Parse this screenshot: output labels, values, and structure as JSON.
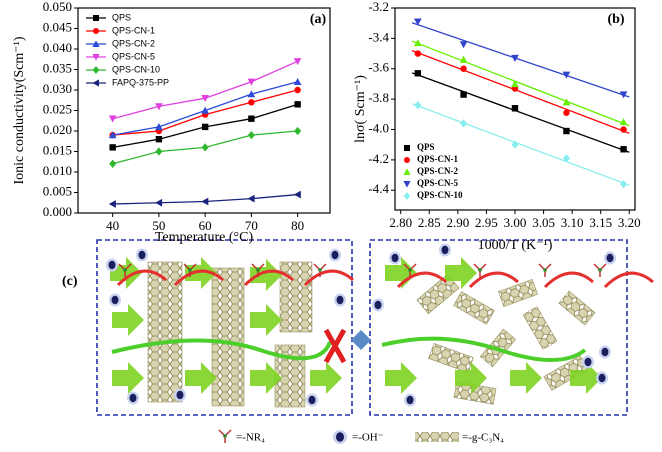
{
  "chart_data": [
    {
      "type": "line",
      "annotation": "(a)",
      "xlabel": "Temperature (°C)",
      "ylabel": "Ionic conductivity(Scm⁻¹)",
      "x": [
        40,
        50,
        60,
        70,
        80
      ],
      "xlim": [
        32.5,
        87
      ],
      "xticks": [
        40,
        50,
        60,
        70,
        80
      ],
      "ylim": [
        0,
        0.05
      ],
      "yticks": [
        {
          "value": 0,
          "label": "0.000"
        },
        {
          "value": 0.005,
          "label": "0.005"
        },
        {
          "value": 0.01,
          "label": "0.010"
        },
        {
          "value": 0.015,
          "label": "0.015"
        },
        {
          "value": 0.02,
          "label": "0.020"
        },
        {
          "value": 0.025,
          "label": "0.025"
        },
        {
          "value": 0.03,
          "label": "0.030"
        },
        {
          "value": 0.035,
          "label": "0.035"
        },
        {
          "value": 0.04,
          "label": "0.040"
        },
        {
          "value": 0.045,
          "label": "0.045"
        },
        {
          "value": 0.05,
          "label": "0.050"
        }
      ],
      "legend": "top-left",
      "series": [
        {
          "name": "QPS",
          "color": "#000000",
          "marker": "square",
          "values": [
            0.016,
            0.018,
            0.021,
            0.023,
            0.0265
          ]
        },
        {
          "name": "QPS-CN-1",
          "color": "#ff0000",
          "marker": "circle",
          "values": [
            0.019,
            0.02,
            0.024,
            0.027,
            0.03
          ]
        },
        {
          "name": "QPS-CN-2",
          "color": "#2b4bd8",
          "marker": "triangle-up",
          "values": [
            0.019,
            0.021,
            0.025,
            0.029,
            0.032
          ]
        },
        {
          "name": "QPS-CN-5",
          "color": "#e040e0",
          "marker": "triangle-down",
          "values": [
            0.023,
            0.026,
            0.028,
            0.032,
            0.037
          ]
        },
        {
          "name": "QPS-CN-10",
          "color": "#2eb82e",
          "marker": "diamond",
          "values": [
            0.012,
            0.015,
            0.016,
            0.019,
            0.02
          ]
        },
        {
          "name": "FAPQ-375-PP",
          "color": "#1a237e",
          "marker": "triangle-left",
          "values": [
            0.0022,
            0.0025,
            0.0028,
            0.0035,
            0.0045
          ]
        }
      ]
    },
    {
      "type": "scatter",
      "annotation": "(b)",
      "fit": true,
      "xlabel": "1000/T (K⁻¹)",
      "ylabel": "lnσ( Scm⁻¹)",
      "x": [
        2.83,
        2.91,
        3.0,
        3.09,
        3.19
      ],
      "xlim": [
        2.79,
        3.21
      ],
      "xticks": [
        {
          "value": 2.8,
          "label": "2.80"
        },
        2.85,
        {
          "value": 2.9,
          "label": "2.90"
        },
        2.95,
        {
          "value": 3.0,
          "label": "3.00"
        },
        3.05,
        {
          "value": 3.1,
          "label": "3.10"
        },
        3.15,
        {
          "value": 3.2,
          "label": "3.20"
        }
      ],
      "ylim": [
        -4.53,
        -3.2
      ],
      "yticks": [
        -3.2,
        -3.4,
        -3.6,
        -3.8,
        {
          "value": -4.0,
          "label": "-4.0"
        },
        -4.2,
        -4.4
      ],
      "legend": "bottom-left",
      "series": [
        {
          "name": "QPS",
          "color": "#000000",
          "marker": "square",
          "values": [
            -3.63,
            -3.77,
            -3.86,
            -4.01,
            -4.13
          ]
        },
        {
          "name": "QPS-CN-1",
          "color": "#ff0000",
          "marker": "circle",
          "values": [
            -3.5,
            -3.6,
            -3.73,
            -3.89,
            -4.0
          ]
        },
        {
          "name": "QPS-CN-2",
          "color": "#66ee00",
          "marker": "triangle-up",
          "values": [
            -3.43,
            -3.54,
            -3.7,
            -3.82,
            -3.95
          ]
        },
        {
          "name": "QPS-CN-5",
          "color": "#3344cc",
          "marker": "triangle-down",
          "values": [
            -3.29,
            -3.44,
            -3.53,
            -3.64,
            -3.77
          ]
        },
        {
          "name": "QPS-CN-10",
          "color": "#88eeee",
          "marker": "diamond",
          "values": [
            -3.84,
            -3.96,
            -4.1,
            -4.19,
            -4.36
          ]
        }
      ]
    }
  ],
  "diagram": {
    "label": "(c)",
    "legend": [
      "=-NR₄",
      "=-OH⁻",
      "=-g-C₃N₄"
    ]
  }
}
